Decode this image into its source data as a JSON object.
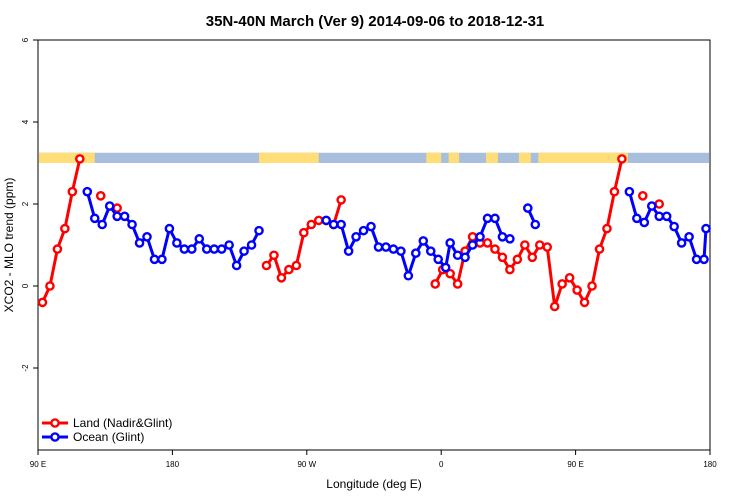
{
  "colors": {
    "land": "#ff0000",
    "ocean": "#0000ff",
    "land_mask": "#ffdd77",
    "ocean_mask": "#a8bedd",
    "axis": "#000000"
  },
  "chart_data": {
    "type": "line",
    "title": "35N-40N March (Ver 9)   2014-09-06 to 2018-12-31",
    "xlabel": "Longitude (deg E)",
    "ylabel": "XCO2 - MLO trend (ppm)",
    "xlim": [
      90,
      540
    ],
    "ylim": [
      -4,
      6
    ],
    "x_ticks": [
      {
        "value": 90,
        "label": "90 E"
      },
      {
        "value": 180,
        "label": "180"
      },
      {
        "value": 270,
        "label": "90 W"
      },
      {
        "value": 360,
        "label": "0"
      },
      {
        "value": 450,
        "label": "90 E"
      },
      {
        "value": 540,
        "label": "180"
      }
    ],
    "y_ticks": [
      {
        "value": -2,
        "label": "-2"
      },
      {
        "value": 0,
        "label": "0"
      },
      {
        "value": 2,
        "label": "2"
      },
      {
        "value": 4,
        "label": "4"
      },
      {
        "value": 6,
        "label": "6"
      }
    ],
    "legend_position": "bottom-left",
    "series": [
      {
        "name": "Land (Nadir&Glint)",
        "color": "#ff0000",
        "segments": [
          [
            [
              93,
              -0.4
            ],
            [
              98,
              0.0
            ],
            [
              103,
              0.9
            ],
            [
              108,
              1.4
            ],
            [
              113,
              2.3
            ],
            [
              118,
              3.1
            ]
          ],
          [
            [
              132,
              2.2
            ]
          ],
          [
            [
              143,
              1.9
            ]
          ],
          [
            [
              243,
              0.5
            ],
            [
              248,
              0.75
            ],
            [
              253,
              0.2
            ],
            [
              258,
              0.4
            ],
            [
              263,
              0.5
            ],
            [
              268,
              1.3
            ],
            [
              273,
              1.5
            ],
            [
              278,
              1.6
            ],
            [
              283,
              1.6
            ],
            [
              288,
              1.5
            ],
            [
              293,
              2.1
            ]
          ],
          [
            [
              356,
              0.05
            ],
            [
              361,
              0.4
            ],
            [
              366,
              0.3
            ],
            [
              371,
              0.05
            ],
            [
              376,
              0.85
            ],
            [
              381,
              1.2
            ],
            [
              386,
              1.05
            ],
            [
              391,
              1.05
            ],
            [
              396,
              0.9
            ],
            [
              401,
              0.7
            ],
            [
              406,
              0.4
            ],
            [
              411,
              0.65
            ],
            [
              416,
              1.0
            ],
            [
              421,
              0.7
            ],
            [
              426,
              1.0
            ],
            [
              431,
              0.95
            ],
            [
              436,
              -0.5
            ],
            [
              441,
              0.05
            ],
            [
              446,
              0.2
            ],
            [
              451,
              -0.1
            ],
            [
              456,
              -0.4
            ],
            [
              461,
              0.0
            ],
            [
              466,
              0.9
            ],
            [
              471,
              1.4
            ],
            [
              476,
              2.3
            ],
            [
              481,
              3.1
            ]
          ],
          [
            [
              495,
              2.2
            ]
          ],
          [
            [
              506,
              2.0
            ]
          ]
        ]
      },
      {
        "name": "Ocean (Glint)",
        "color": "#0000ff",
        "segments": [
          [
            [
              123,
              2.3
            ],
            [
              128,
              1.65
            ],
            [
              133,
              1.5
            ],
            [
              138,
              1.95
            ],
            [
              143,
              1.7
            ],
            [
              148,
              1.7
            ],
            [
              153,
              1.5
            ],
            [
              158,
              1.05
            ],
            [
              163,
              1.2
            ],
            [
              168,
              0.65
            ],
            [
              173,
              0.65
            ],
            [
              178,
              1.4
            ],
            [
              183,
              1.05
            ],
            [
              188,
              0.9
            ],
            [
              193,
              0.9
            ],
            [
              198,
              1.15
            ],
            [
              203,
              0.9
            ],
            [
              208,
              0.9
            ],
            [
              213,
              0.9
            ],
            [
              218,
              1.0
            ],
            [
              223,
              0.5
            ],
            [
              228,
              0.85
            ],
            [
              233,
              1.0
            ],
            [
              238,
              1.35
            ]
          ],
          [
            [
              283,
              1.6
            ],
            [
              288,
              1.5
            ],
            [
              293,
              1.5
            ],
            [
              298,
              0.85
            ],
            [
              303,
              1.2
            ],
            [
              308,
              1.35
            ],
            [
              313,
              1.45
            ],
            [
              318,
              0.95
            ],
            [
              323,
              0.95
            ],
            [
              328,
              0.9
            ],
            [
              333,
              0.85
            ],
            [
              338,
              0.25
            ],
            [
              343,
              0.8
            ],
            [
              348,
              1.1
            ],
            [
              353,
              0.85
            ],
            [
              358,
              0.65
            ],
            [
              363,
              0.45
            ],
            [
              366,
              1.05
            ],
            [
              371,
              0.75
            ],
            [
              376,
              0.7
            ],
            [
              381,
              1.0
            ],
            [
              386,
              1.2
            ],
            [
              391,
              1.65
            ],
            [
              396,
              1.65
            ],
            [
              401,
              1.2
            ],
            [
              406,
              1.15
            ]
          ],
          [
            [
              418,
              1.9
            ],
            [
              423,
              1.5
            ]
          ],
          [
            [
              486,
              2.3
            ],
            [
              491,
              1.65
            ],
            [
              496,
              1.55
            ],
            [
              501,
              1.95
            ],
            [
              506,
              1.7
            ],
            [
              511,
              1.7
            ],
            [
              516,
              1.45
            ],
            [
              521,
              1.05
            ],
            [
              526,
              1.2
            ],
            [
              531,
              0.65
            ],
            [
              536,
              0.65
            ],
            [
              541,
              1.4
            ]
          ]
        ]
      }
    ],
    "surface_band": {
      "y_range": [
        3.0,
        3.25
      ],
      "land_ranges": [
        [
          90,
          128
        ],
        [
          238,
          278
        ],
        [
          350,
          360
        ],
        [
          365,
          372
        ],
        [
          390,
          398
        ],
        [
          412,
          420
        ],
        [
          425,
          485
        ]
      ]
    }
  }
}
